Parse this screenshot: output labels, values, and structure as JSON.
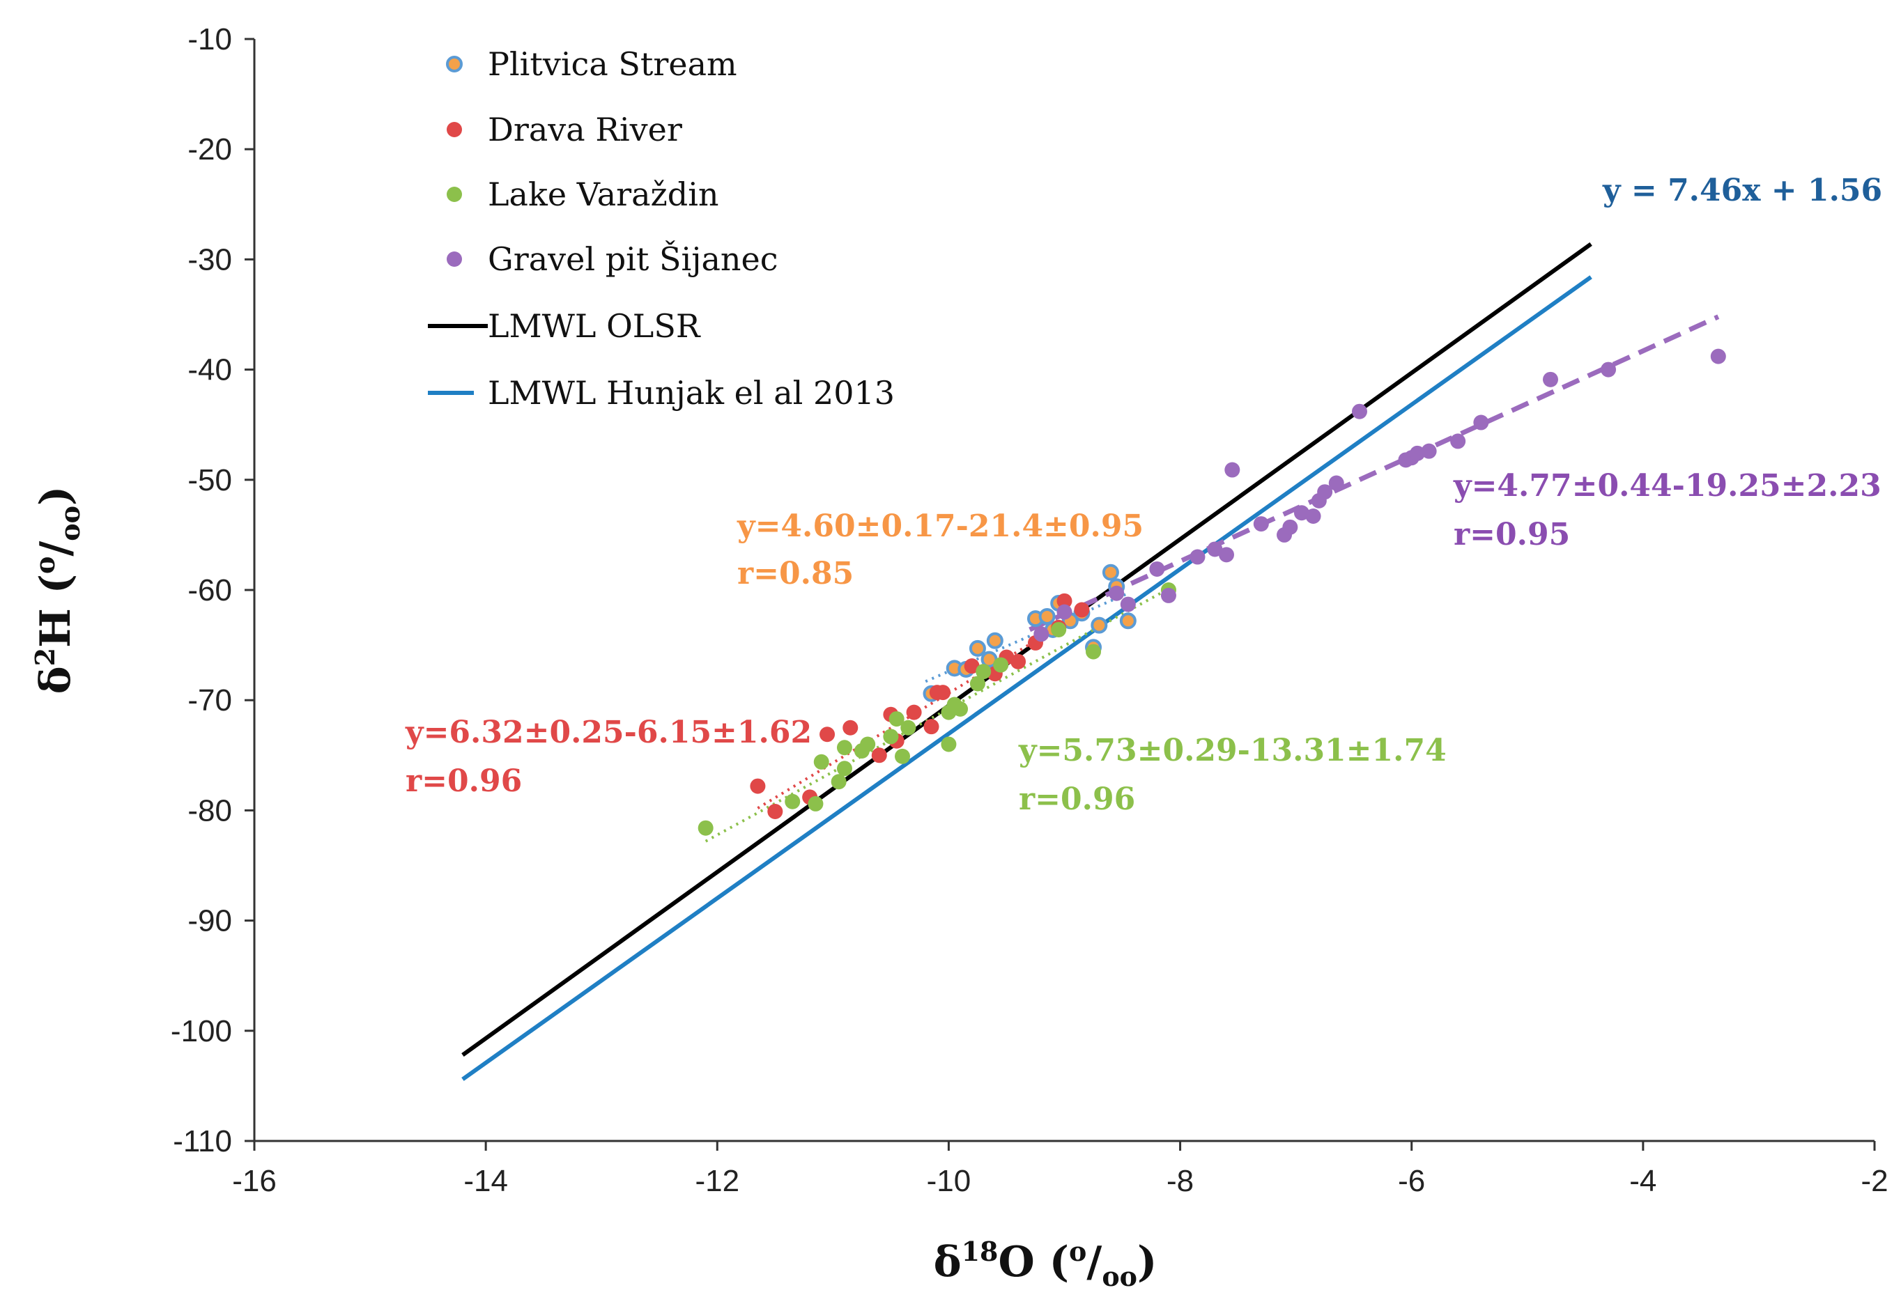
{
  "chart_data": {
    "type": "scatter",
    "xlabel": "δ18O (o/oo)",
    "ylabel": "δ2H (o/oo)",
    "xlim": [
      -16,
      -2
    ],
    "ylim": [
      -110,
      -10
    ],
    "x_ticks": [
      "-16",
      "-14",
      "-12",
      "-10",
      "-8",
      "-6",
      "-4",
      "-2"
    ],
    "y_ticks": [
      "-10",
      "-20",
      "-30",
      "-40",
      "-50",
      "-60",
      "-70",
      "-80",
      "-90",
      "-100",
      "-110"
    ],
    "x_tick_values": [
      -16,
      -14,
      -12,
      -10,
      -8,
      -6,
      -4,
      -2
    ],
    "y_tick_values": [
      -10,
      -20,
      -30,
      -40,
      -50,
      -60,
      -70,
      -80,
      -90,
      -100,
      -110
    ],
    "legend": [
      {
        "label": "Plitvica Stream",
        "kind": "marker",
        "color": "#5b9bd5",
        "fill": "#f4a14a"
      },
      {
        "label": "Drava River",
        "kind": "marker",
        "color": "#e04848",
        "fill": "#e04848"
      },
      {
        "label": "Lake Varaždin",
        "kind": "marker",
        "color": "#8cc04b",
        "fill": "#8cc04b"
      },
      {
        "label": "Gravel pit Šijanec",
        "kind": "marker",
        "color": "#9b6bbd",
        "fill": "#9b6bbd"
      },
      {
        "label": "LMWL OLSR",
        "kind": "line",
        "color": "#000000"
      },
      {
        "label": "LMWL Hunjak el al 2013",
        "kind": "line",
        "color": "#1f7fc4"
      }
    ],
    "series": [
      {
        "name": "Plitvica Stream",
        "color": "#5b9bd5",
        "fill": "#f4a14a",
        "points": [
          [
            -9.95,
            -67.1
          ],
          [
            -9.75,
            -65.3
          ],
          [
            -9.6,
            -64.6
          ],
          [
            -9.25,
            -62.6
          ],
          [
            -9.15,
            -62.4
          ],
          [
            -9.05,
            -61.2
          ],
          [
            -8.95,
            -62.8
          ],
          [
            -8.85,
            -62.1
          ],
          [
            -8.6,
            -58.4
          ],
          [
            -8.55,
            -59.7
          ],
          [
            -8.7,
            -63.2
          ],
          [
            -8.45,
            -62.8
          ],
          [
            -8.75,
            -65.2
          ],
          [
            -9.1,
            -63.6
          ],
          [
            -9.65,
            -66.3
          ],
          [
            -10.15,
            -69.4
          ],
          [
            -9.85,
            -67.2
          ]
        ]
      },
      {
        "name": "Drava River",
        "color": "#e04848",
        "fill": "#e04848",
        "points": [
          [
            -11.65,
            -77.8
          ],
          [
            -11.5,
            -80.1
          ],
          [
            -11.2,
            -78.8
          ],
          [
            -11.05,
            -73.1
          ],
          [
            -10.85,
            -72.5
          ],
          [
            -10.6,
            -75.0
          ],
          [
            -10.5,
            -71.3
          ],
          [
            -10.45,
            -73.7
          ],
          [
            -10.3,
            -71.1
          ],
          [
            -10.15,
            -72.4
          ],
          [
            -10.1,
            -69.3
          ],
          [
            -10.05,
            -69.3
          ],
          [
            -9.8,
            -66.9
          ],
          [
            -9.6,
            -67.6
          ],
          [
            -9.5,
            -66.1
          ],
          [
            -9.4,
            -66.5
          ],
          [
            -9.25,
            -64.8
          ],
          [
            -9.05,
            -63.4
          ],
          [
            -9.0,
            -61.0
          ],
          [
            -8.85,
            -61.8
          ]
        ]
      },
      {
        "name": "Lake Varaždin",
        "color": "#8cc04b",
        "fill": "#8cc04b",
        "points": [
          [
            -12.1,
            -81.6
          ],
          [
            -11.35,
            -79.2
          ],
          [
            -11.15,
            -79.4
          ],
          [
            -11.1,
            -75.6
          ],
          [
            -10.95,
            -77.4
          ],
          [
            -10.9,
            -76.2
          ],
          [
            -10.9,
            -74.3
          ],
          [
            -10.75,
            -74.6
          ],
          [
            -10.7,
            -74.0
          ],
          [
            -10.5,
            -73.3
          ],
          [
            -10.45,
            -71.7
          ],
          [
            -10.4,
            -75.1
          ],
          [
            -10.35,
            -72.5
          ],
          [
            -10.0,
            -74.0
          ],
          [
            -10.0,
            -71.1
          ],
          [
            -9.95,
            -70.4
          ],
          [
            -9.9,
            -70.8
          ],
          [
            -9.75,
            -68.5
          ],
          [
            -9.7,
            -67.4
          ],
          [
            -9.55,
            -66.8
          ],
          [
            -9.05,
            -63.6
          ],
          [
            -8.75,
            -65.6
          ],
          [
            -8.1,
            -60.0
          ]
        ]
      },
      {
        "name": "Gravel pit Šijanec",
        "color": "#9b6bbd",
        "fill": "#9b6bbd",
        "points": [
          [
            -9.2,
            -64.0
          ],
          [
            -9.0,
            -62.0
          ],
          [
            -8.55,
            -60.3
          ],
          [
            -8.45,
            -61.3
          ],
          [
            -8.1,
            -60.5
          ],
          [
            -8.2,
            -58.1
          ],
          [
            -7.85,
            -57.0
          ],
          [
            -7.7,
            -56.3
          ],
          [
            -7.6,
            -56.8
          ],
          [
            -7.55,
            -49.1
          ],
          [
            -7.3,
            -54.0
          ],
          [
            -7.1,
            -55.0
          ],
          [
            -7.05,
            -54.3
          ],
          [
            -6.95,
            -53.0
          ],
          [
            -6.85,
            -53.3
          ],
          [
            -6.8,
            -51.9
          ],
          [
            -6.75,
            -51.1
          ],
          [
            -6.65,
            -50.3
          ],
          [
            -6.45,
            -43.8
          ],
          [
            -6.05,
            -48.2
          ],
          [
            -6.0,
            -48.0
          ],
          [
            -5.95,
            -47.6
          ],
          [
            -5.85,
            -47.4
          ],
          [
            -5.6,
            -46.5
          ],
          [
            -5.4,
            -44.8
          ],
          [
            -4.8,
            -40.9
          ],
          [
            -4.3,
            -40.0
          ],
          [
            -3.35,
            -38.8
          ]
        ]
      }
    ],
    "lines": [
      {
        "name": "LMWL OLSR",
        "color": "#000000",
        "style": "solid",
        "from": [
          -14.2,
          -102.2
        ],
        "to": [
          -4.45,
          -28.6
        ]
      },
      {
        "name": "LMWL Hunjak el al 2013",
        "color": "#1f7fc4",
        "style": "solid",
        "from": [
          -14.2,
          -104.4
        ],
        "to": [
          -4.45,
          -31.6
        ]
      },
      {
        "name": "Gravel pit Šijanec fit",
        "color": "#9b6bbd",
        "style": "dashed",
        "from": [
          -9.3,
          -63.6
        ],
        "to": [
          -3.35,
          -35.2
        ]
      },
      {
        "name": "Plitvica Stream fit",
        "color": "#5b9bd5",
        "style": "dotted",
        "from": [
          -10.2,
          -68.3
        ],
        "to": [
          -8.45,
          -60.3
        ]
      },
      {
        "name": "Drava River fit",
        "color": "#e04848",
        "style": "dotted",
        "from": [
          -11.65,
          -79.8
        ],
        "to": [
          -8.9,
          -62.4
        ]
      },
      {
        "name": "Lake Varaždin fit",
        "color": "#8cc04b",
        "style": "dotted",
        "from": [
          -12.1,
          -82.8
        ],
        "to": [
          -8.1,
          -59.9
        ]
      }
    ],
    "annotations": [
      {
        "line1": "y = 7.46x + 1.56",
        "line2": "",
        "color": "#1f5f9a"
      },
      {
        "line1": "y=4.60±0.17-21.4±0.95",
        "line2": "r=0.85",
        "color": "#f79646"
      },
      {
        "line1": "y=4.77±0.44-19.25±2.23",
        "line2": "r=0.95",
        "color": "#8a4db0"
      },
      {
        "line1": "y=6.32±0.25-6.15±1.62",
        "line2": "r=0.96",
        "color": "#e04848"
      },
      {
        "line1": "y=5.73±0.29-13.31±1.74",
        "line2": "r=0.96",
        "color": "#8cc04b"
      }
    ]
  }
}
